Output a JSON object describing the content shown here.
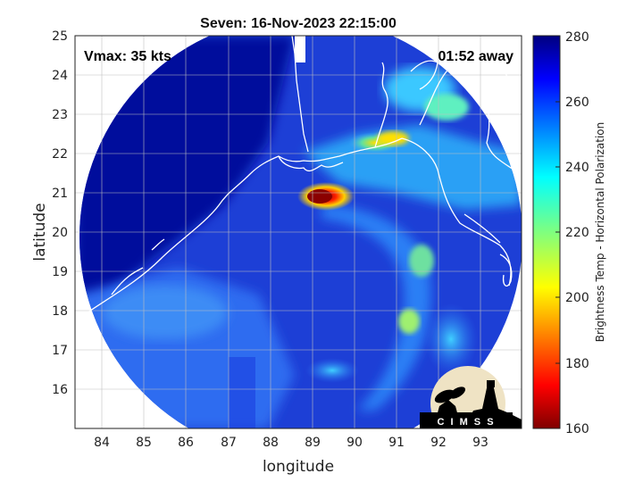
{
  "map": {
    "title": "Seven: 16-Nov-2023 22:15:00",
    "vmax_label": "Vmax: 35 kts",
    "time_label": "01:52 away",
    "xlabel": "longitude",
    "ylabel": "latitude",
    "lon_range": [
      83.4,
      94.0
    ],
    "lat_range": [
      15.0,
      25.0
    ],
    "lon_ticks": [
      "84",
      "85",
      "86",
      "87",
      "88",
      "89",
      "90",
      "91",
      "92",
      "93"
    ],
    "lat_ticks": [
      "16",
      "17",
      "18",
      "19",
      "20",
      "21",
      "22",
      "23",
      "24",
      "25"
    ],
    "storm_center": {
      "lon": 89.1,
      "lat": 20.9
    },
    "swath_edge": "circular",
    "grid": true
  },
  "colorbar": {
    "label": "Brightness Temp - Horizontal Polarization",
    "range": [
      160,
      280
    ],
    "ticks": [
      "280",
      "260",
      "240",
      "220",
      "200",
      "180",
      "160"
    ],
    "colormap": "jet"
  },
  "logo": {
    "text": "C I M S S"
  },
  "colors": {
    "background_cold": "#00007f",
    "swath_mid": "#1a4fe0",
    "warm_core": "#a00000",
    "coastline": "#ffffff"
  }
}
